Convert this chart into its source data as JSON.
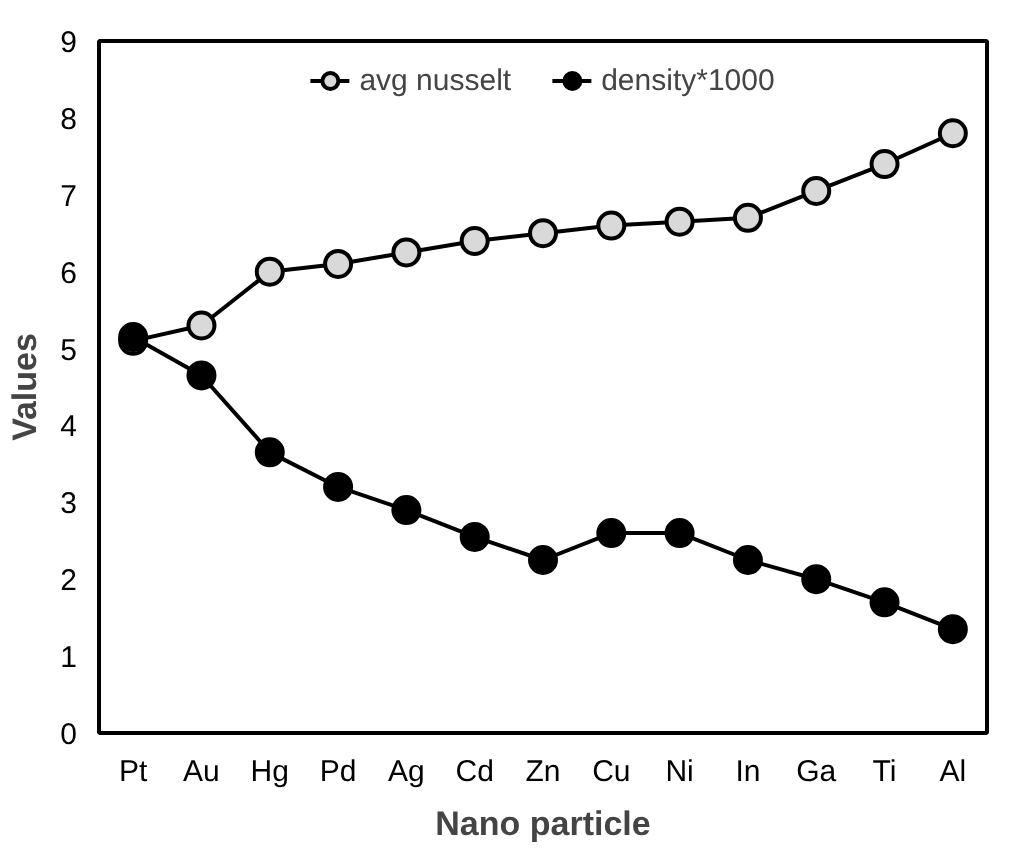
{
  "chart_data": {
    "type": "line",
    "xlabel": "Nano particle",
    "ylabel": "Values",
    "categories": [
      "Pt",
      "Au",
      "Hg",
      "Pd",
      "Ag",
      "Cd",
      "Zn",
      "Cu",
      "Ni",
      "In",
      "Ga",
      "Ti",
      "Al"
    ],
    "series": [
      {
        "name": "avg nusselt",
        "color": "#d9d9d9",
        "values": [
          5.1,
          5.3,
          6.0,
          6.1,
          6.25,
          6.4,
          6.5,
          6.6,
          6.65,
          6.7,
          7.05,
          7.4,
          7.8
        ]
      },
      {
        "name": "density*1000",
        "color": "#000000",
        "values": [
          5.15,
          4.65,
          3.65,
          3.2,
          2.9,
          2.55,
          2.25,
          2.6,
          2.6,
          2.25,
          2.0,
          1.7,
          1.35
        ]
      }
    ],
    "ylim": [
      0,
      9
    ],
    "yticks": [
      0,
      1,
      2,
      3,
      4,
      5,
      6,
      7,
      8,
      9
    ],
    "legend": "top",
    "marker": "circle",
    "line_style": "solid",
    "grid": false
  }
}
